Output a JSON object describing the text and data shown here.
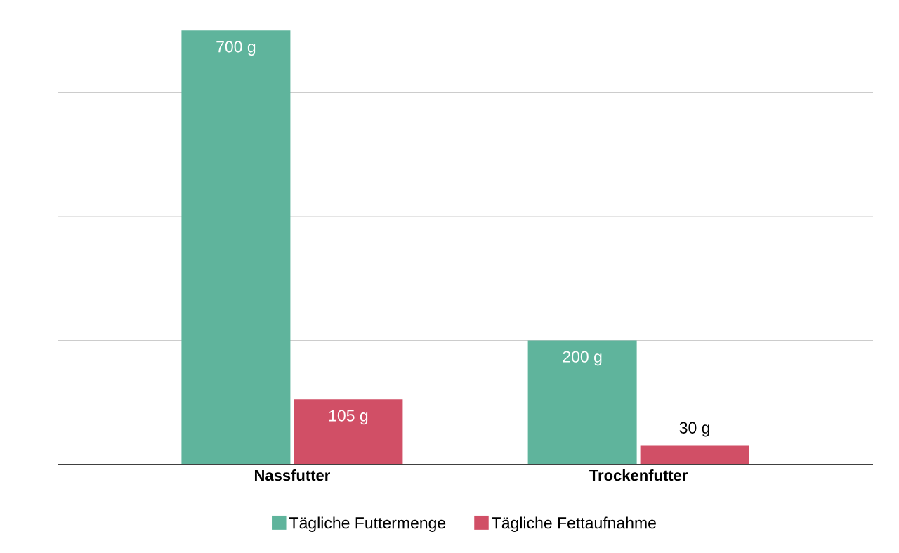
{
  "chart_data": {
    "type": "bar",
    "categories": [
      "Nassfutter",
      "Trockenfutter"
    ],
    "series": [
      {
        "name": "Tägliche Futtermenge",
        "color": "#5fb49c",
        "values": [
          700,
          200
        ],
        "value_labels": [
          "700 g",
          "200 g"
        ]
      },
      {
        "name": "Tägliche Fettaufnahme",
        "color": "#d14f66",
        "values": [
          105,
          30
        ],
        "value_labels": [
          "105 g",
          "30 g"
        ]
      }
    ],
    "yticks": [
      {
        "value": 200,
        "label": null
      },
      {
        "value": 400,
        "label": null
      },
      {
        "value": 600,
        "label": null
      }
    ],
    "grid": "y",
    "legend": "bottom",
    "tick_labels": "x"
  }
}
